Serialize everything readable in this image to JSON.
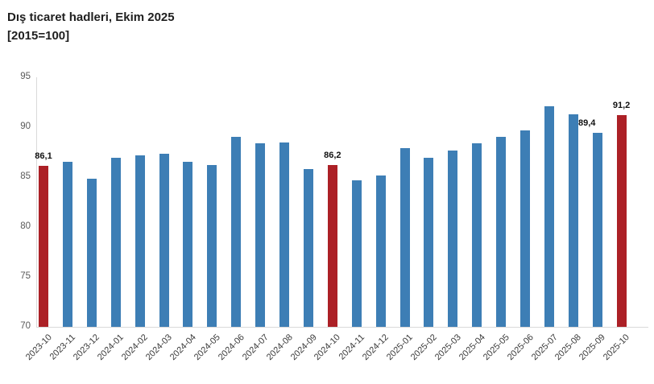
{
  "chart_data": {
    "type": "bar",
    "title": "Dış ticaret hadleri, Ekim 2025",
    "subtitle": "[2015=100]",
    "categories": [
      "2023-10",
      "2023-11",
      "2023-12",
      "2024-01",
      "2024-02",
      "2024-03",
      "2024-04",
      "2024-05",
      "2024-06",
      "2024-07",
      "2024-08",
      "2024-09",
      "2024-10",
      "2024-11",
      "2024-12",
      "2025-01",
      "2025-02",
      "2025-03",
      "2025-04",
      "2025-05",
      "2025-06",
      "2025-07",
      "2025-08",
      "2025-09",
      "2025-10"
    ],
    "values": [
      86.1,
      86.5,
      84.8,
      86.9,
      87.2,
      87.3,
      86.5,
      86.2,
      89.0,
      88.4,
      88.5,
      85.8,
      86.2,
      84.7,
      85.2,
      87.9,
      86.9,
      87.7,
      88.4,
      89.0,
      89.7,
      92.1,
      91.3,
      89.4,
      91.2
    ],
    "yticks": [
      70,
      75,
      80,
      85,
      90,
      95
    ],
    "ylim": [
      70,
      95
    ],
    "grid": false,
    "legend": false,
    "bar_color_default": "#3d7eb5",
    "bar_color_highlight": "#ac2026",
    "highlight_indices": [
      0,
      12,
      24
    ],
    "data_labels": [
      {
        "index": 0,
        "text": "86,1"
      },
      {
        "index": 12,
        "text": "86,2"
      },
      {
        "index": 23,
        "text": "89,4"
      },
      {
        "index": 24,
        "text": "91,2"
      }
    ]
  }
}
